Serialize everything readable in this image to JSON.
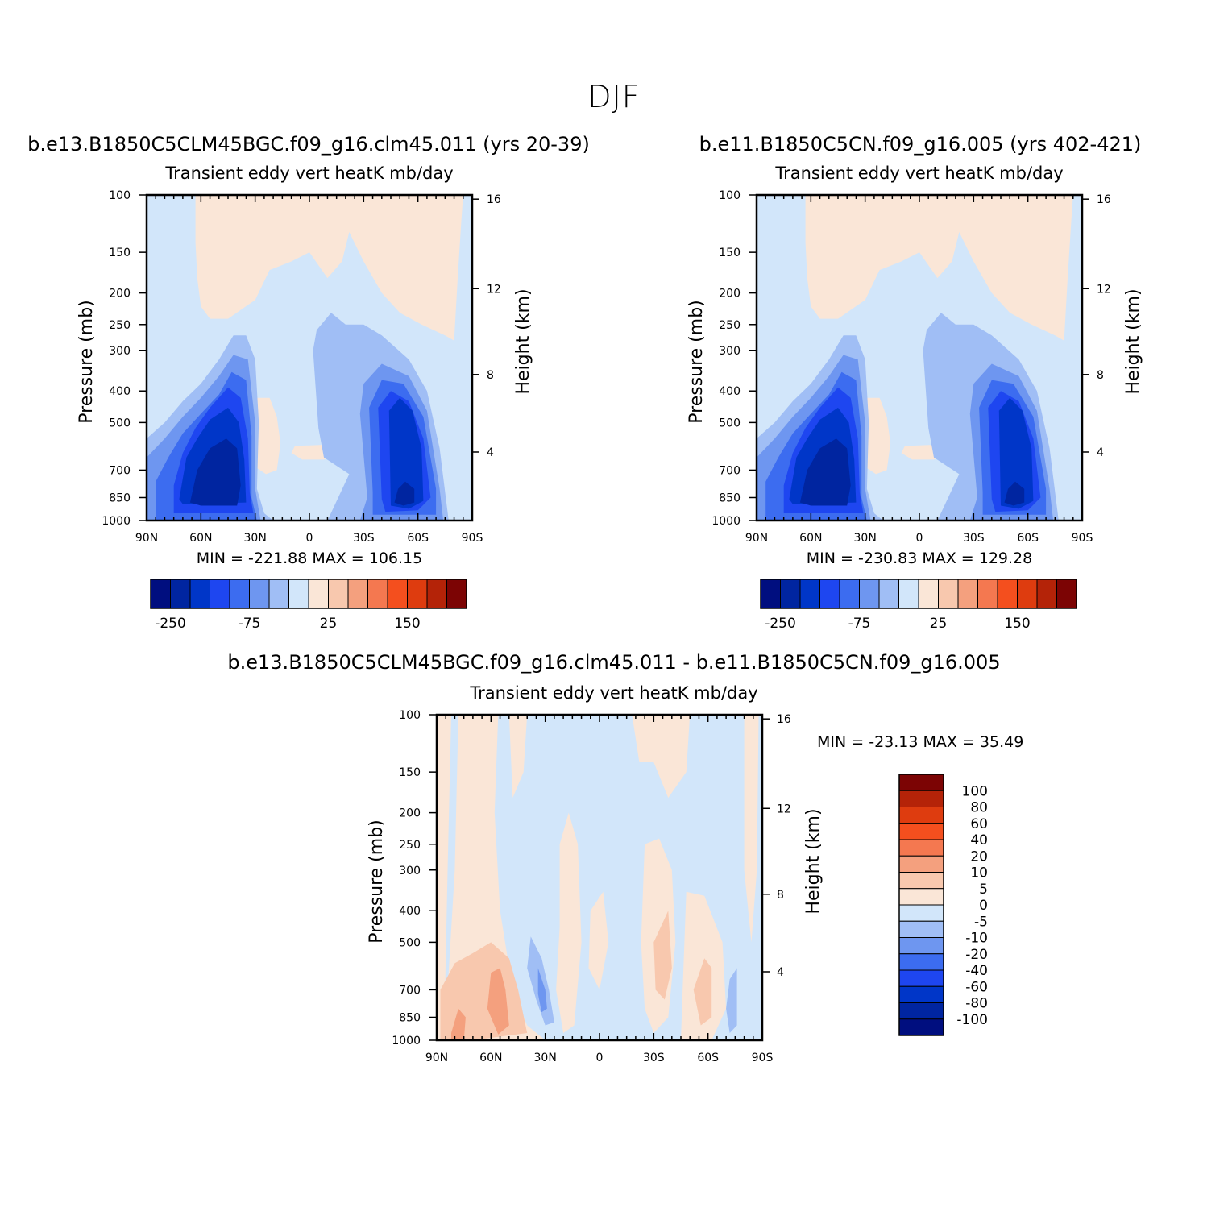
{
  "title": "DJF",
  "colors": {
    "scale": [
      "#000e7f",
      "#0025a0",
      "#0036c8",
      "#1e46f0",
      "#3c6cf0",
      "#6e96f0",
      "#a0bef5",
      "#d2e6fa",
      "#fae6d7",
      "#f8c8ae",
      "#f4a07e",
      "#f47850",
      "#f44f1e",
      "#de3c0f",
      "#b42308",
      "#7c0404"
    ],
    "bg_neg": "#d2e6fa",
    "bg_pos": "#fae6d7"
  },
  "panels": [
    {
      "id": "left",
      "case_title": "b.e13.B1850C5CLM45BGC.f09_g16.clm45.011 (yrs 20-39)",
      "subtitle": "Transient eddy vert heatK mb/day",
      "minmax": "MIN = -221.88   MAX = 106.15"
    },
    {
      "id": "right",
      "case_title": "b.e11.B1850C5CN.f09_g16.005 (yrs 402-421)",
      "subtitle": "Transient eddy vert heatK mb/day",
      "minmax": "MIN = -230.83   MAX = 129.28"
    },
    {
      "id": "diff",
      "case_title": "b.e13.B1850C5CLM45BGC.f09_g16.clm45.011 - b.e11.B1850C5CN.f09_g16.005",
      "subtitle": "Transient eddy vert heatK mb/day",
      "minmax": "MIN = -23.13   MAX =  35.49"
    }
  ],
  "chart_data": {
    "type": "contour",
    "xlabel": "",
    "ylabel": "Pressure (mb)",
    "ylabel_right": "Height (km)",
    "x_ticks": [
      "90N",
      "60N",
      "30N",
      "0",
      "30S",
      "60S",
      "90S"
    ],
    "y_ticks": [
      "100",
      "150",
      "200",
      "250",
      "300",
      "400",
      "500",
      "700",
      "850",
      "1000"
    ],
    "y_ticks_right": [
      "16",
      "12",
      "8",
      "4"
    ],
    "xlim": [
      90,
      -90
    ],
    "ylim": [
      1000,
      100
    ],
    "top_colorbar_labels": [
      "-250",
      "-75",
      "25",
      "150"
    ],
    "diff_colorbar_labels": [
      "100",
      "80",
      "60",
      "40",
      "20",
      "10",
      "5",
      "0",
      "-5",
      "-10",
      "-20",
      "-40",
      "-60",
      "-80",
      "-100"
    ]
  }
}
